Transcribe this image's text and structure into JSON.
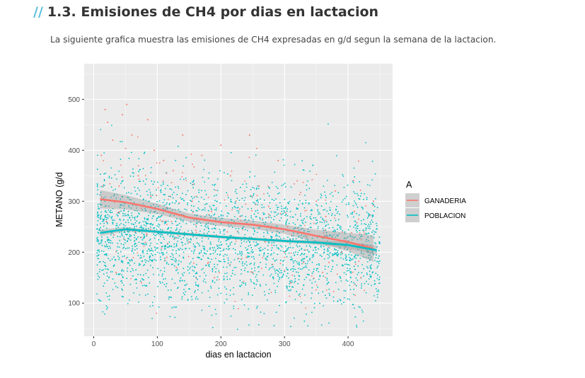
{
  "section": {
    "marker": "//",
    "title": "1.3. Emisiones de CH4 por dias en lactacion",
    "description": "La siguiente grafica muestra las emisiones de CH4 expresadas en g/d segun la semana de la lactacion."
  },
  "chart_data": {
    "type": "scatter",
    "title": "",
    "xlabel": "dias en lactacion",
    "ylabel": "METANO (g/d",
    "xlim": [
      -15,
      470
    ],
    "ylim": [
      35,
      570
    ],
    "xticks": [
      0,
      100,
      200,
      300,
      400
    ],
    "yticks": [
      100,
      200,
      300,
      400,
      500
    ],
    "grid": true,
    "legend": {
      "title": "A",
      "position": "right",
      "entries": [
        "GANADERIA",
        "POBLACION"
      ]
    },
    "colors": {
      "GANADERIA": "#F8766D",
      "POBLACION": "#00BFC4",
      "panel": "#EBEBEB",
      "ribbon": "#999999"
    },
    "series": [
      {
        "name": "GANADERIA",
        "smooth_x": [
          10,
          50,
          100,
          150,
          200,
          250,
          300,
          350,
          400,
          440
        ],
        "smooth_y": [
          304,
          298,
          285,
          268,
          259,
          254,
          245,
          232,
          220,
          207
        ],
        "points": [
          [
            12,
            390
          ],
          [
            18,
            480
          ],
          [
            22,
            455
          ],
          [
            30,
            420
          ],
          [
            45,
            470
          ],
          [
            52,
            490
          ],
          [
            60,
            430
          ],
          [
            70,
            350
          ],
          [
            85,
            460
          ],
          [
            95,
            400
          ],
          [
            110,
            380
          ],
          [
            125,
            360
          ],
          [
            140,
            430
          ],
          [
            155,
            300
          ],
          [
            170,
            390
          ],
          [
            185,
            280
          ],
          [
            200,
            410
          ],
          [
            215,
            350
          ],
          [
            230,
            270
          ],
          [
            245,
            430
          ],
          [
            260,
            330
          ],
          [
            275,
            290
          ],
          [
            290,
            380
          ],
          [
            305,
            250
          ],
          [
            320,
            340
          ],
          [
            335,
            230
          ],
          [
            350,
            300
          ],
          [
            365,
            270
          ],
          [
            380,
            320
          ],
          [
            395,
            210
          ],
          [
            410,
            280
          ],
          [
            425,
            240
          ],
          [
            440,
            300
          ],
          [
            20,
            260
          ],
          [
            40,
            330
          ],
          [
            65,
            240
          ],
          [
            90,
            310
          ],
          [
            115,
            190
          ],
          [
            150,
            220
          ],
          [
            180,
            180
          ],
          [
            210,
            240
          ],
          [
            240,
            190
          ],
          [
            270,
            220
          ],
          [
            300,
            200
          ],
          [
            330,
            180
          ],
          [
            360,
            160
          ],
          [
            390,
            200
          ],
          [
            420,
            150
          ],
          [
            35,
            160
          ],
          [
            75,
            140
          ],
          [
            130,
            170
          ],
          [
            190,
            150
          ],
          [
            250,
            160
          ],
          [
            310,
            140
          ],
          [
            370,
            180
          ]
        ]
      },
      {
        "name": "POBLACION",
        "smooth_x": [
          10,
          50,
          100,
          150,
          200,
          250,
          300,
          350,
          400,
          445
        ],
        "smooth_y": [
          238,
          245,
          240,
          235,
          230,
          226,
          222,
          219,
          214,
          204
        ],
        "points": []
      }
    ]
  }
}
